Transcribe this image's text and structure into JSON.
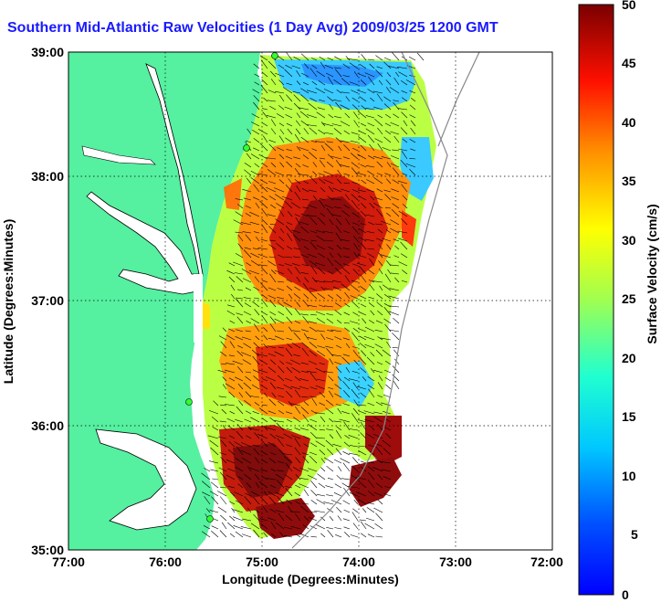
{
  "title": "Southern Mid-Atlantic Raw Velocities (1 Day Avg) 2009/03/25 1200 GMT",
  "map": {
    "xlabel": "Longitude (Degrees:Minutes)",
    "ylabel": "Latitude (Degrees:Minutes)",
    "x_ticks": [
      "77:00",
      "76:00",
      "75:00",
      "74:00",
      "73:00",
      "72:00"
    ],
    "y_ticks": [
      "39:00",
      "38:00",
      "37:00",
      "36:00",
      "35:00"
    ],
    "land_color": "#55f0a0",
    "grid": "dotted"
  },
  "colorbar": {
    "label": "Surface Velocity (cm/s)",
    "ticks": [
      "50",
      "45",
      "40",
      "35",
      "30",
      "25",
      "20",
      "15",
      "10",
      "5",
      "0"
    ],
    "range": [
      0,
      50
    ]
  }
}
